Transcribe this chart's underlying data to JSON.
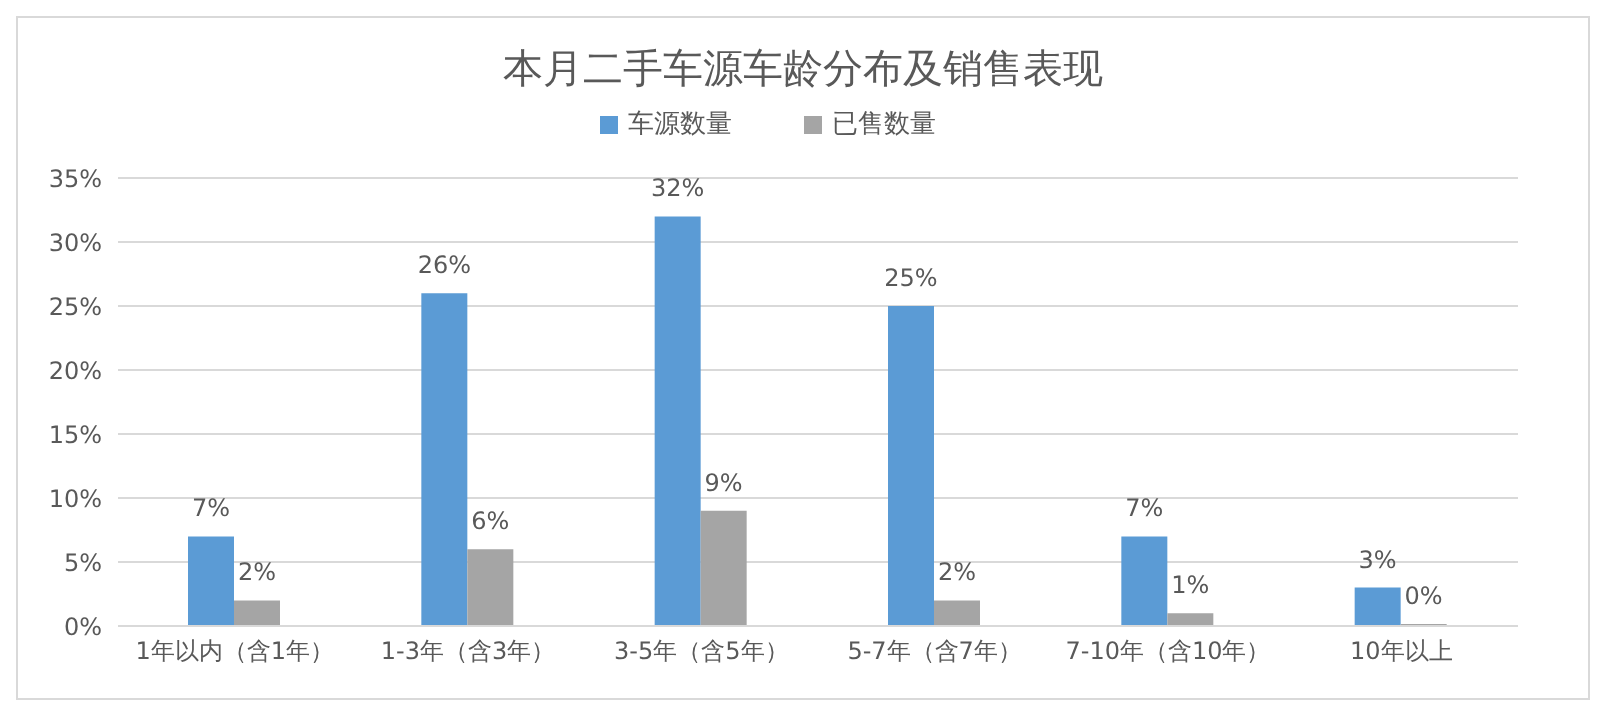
{
  "chart_data": {
    "type": "bar",
    "title": "本月二手车源车龄分布及销售表现",
    "categories": [
      "1年以内（含1年）",
      "1-3年（含3年）",
      "3-5年（含5年）",
      "5-7年（含7年）",
      "7-10年（含10年）",
      "10年以上"
    ],
    "series": [
      {
        "name": "车源数量",
        "color": "#5b9bd5",
        "values": [
          7,
          26,
          32,
          25,
          7,
          3
        ],
        "value_labels": [
          "7%",
          "26%",
          "32%",
          "25%",
          "7%",
          "3%"
        ]
      },
      {
        "name": "已售数量",
        "color": "#a5a5a5",
        "values": [
          2,
          6,
          9,
          2,
          1,
          0
        ],
        "value_labels": [
          "2%",
          "6%",
          "9%",
          "2%",
          "1%",
          "0%"
        ]
      }
    ],
    "ylim": [
      0,
      35
    ],
    "yticks": [
      {
        "value": 0,
        "label": "0%"
      },
      {
        "value": 5,
        "label": "5%"
      },
      {
        "value": 10,
        "label": "10%"
      },
      {
        "value": 15,
        "label": "15%"
      },
      {
        "value": 20,
        "label": "20%"
      },
      {
        "value": 25,
        "label": "25%"
      },
      {
        "value": 30,
        "label": "30%"
      },
      {
        "value": 35,
        "label": "35%"
      }
    ],
    "grid": "y",
    "legend": "top"
  }
}
